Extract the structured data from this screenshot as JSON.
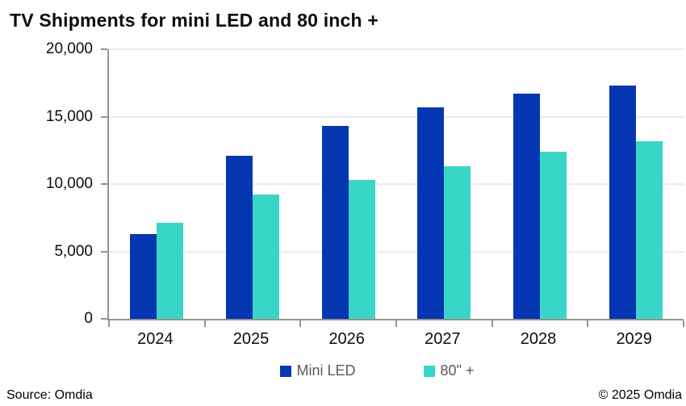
{
  "chart_data": {
    "type": "bar",
    "title": "TV Shipments for mini LED and 80 inch +",
    "categories": [
      "2024",
      "2025",
      "2026",
      "2027",
      "2028",
      "2029"
    ],
    "series": [
      {
        "name": "Mini LED",
        "color": "#0437b1",
        "values": [
          6300,
          12100,
          14300,
          15700,
          16700,
          17300
        ]
      },
      {
        "name": "80\" +",
        "color": "#38d6c6",
        "values": [
          7100,
          9200,
          10300,
          11300,
          12400,
          13200
        ]
      }
    ],
    "xlabel": "",
    "ylabel": "",
    "ylim": [
      0,
      20000
    ],
    "ytick_interval": 5000,
    "ytick_labels": [
      "0",
      "5,000",
      "10,000",
      "15,000",
      "20,000"
    ],
    "grid": "horizontal",
    "gridline_color": "#ececec",
    "axis_color": "#9c9189",
    "legend_position": "bottom"
  },
  "footer": {
    "source": "Source: Omdia",
    "copyright": "© 2025 Omdia"
  }
}
